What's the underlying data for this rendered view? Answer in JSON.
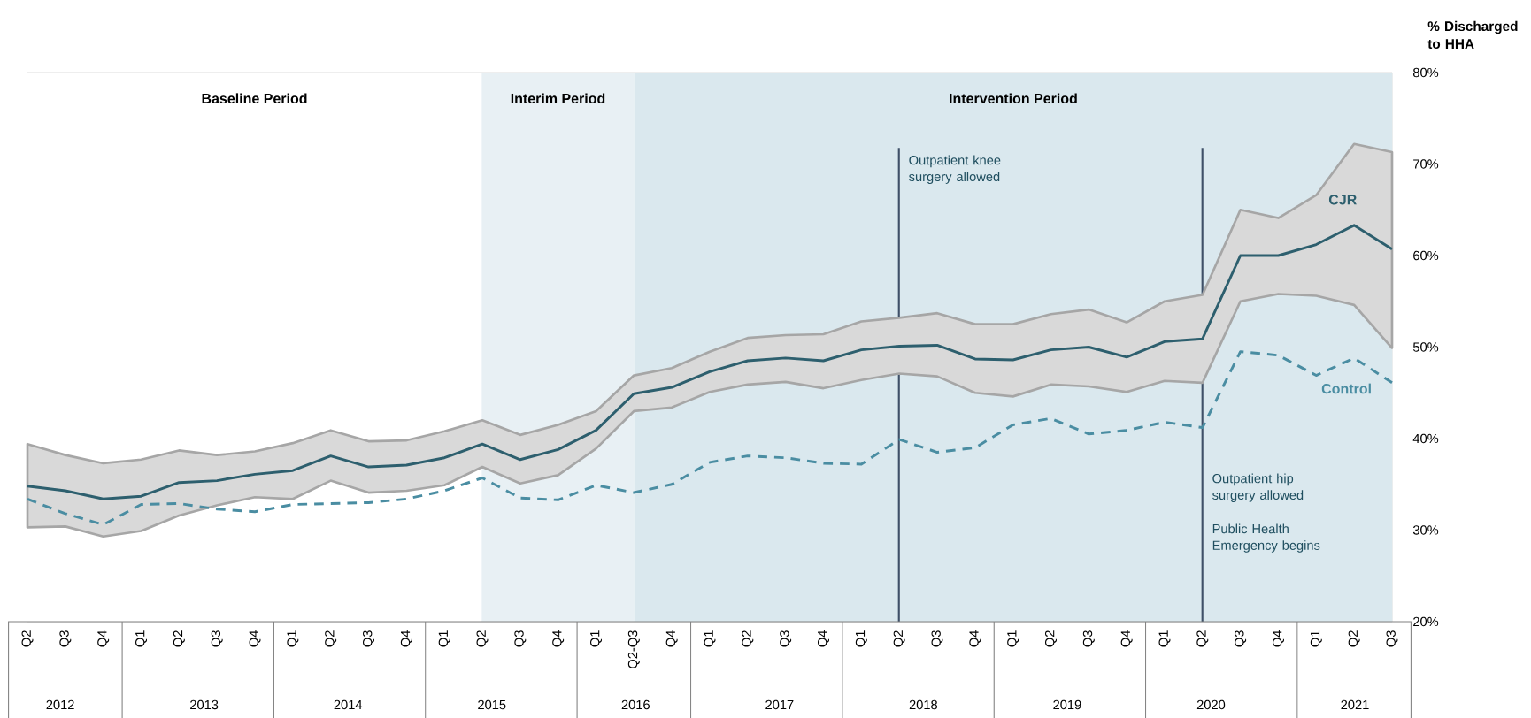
{
  "chart_data": {
    "type": "line",
    "ylabel": "% Discharged to HHA",
    "categories": [
      "Q2",
      "Q3",
      "Q4",
      "Q1",
      "Q2",
      "Q3",
      "Q4",
      "Q1",
      "Q2",
      "Q3",
      "Q4",
      "Q1",
      "Q2",
      "Q3",
      "Q4",
      "Q1",
      "Q2-Q3",
      "Q4",
      "Q1",
      "Q2",
      "Q3",
      "Q4",
      "Q1",
      "Q2",
      "Q3",
      "Q4",
      "Q1",
      "Q2",
      "Q3",
      "Q4",
      "Q1",
      "Q2",
      "Q3",
      "Q4",
      "Q1",
      "Q2",
      "Q3"
    ],
    "x2lim": [
      2011.64,
      2021.39
    ],
    "x2ticks": [
      2012,
      2013,
      2014,
      2015,
      2016,
      2017,
      2018,
      2019,
      2020,
      2021
    ],
    "ylim": [
      20,
      80
    ],
    "yticks": [
      {
        "value": 20,
        "label": "20%"
      },
      {
        "value": 30,
        "label": "30%"
      },
      {
        "value": 40,
        "label": "40%"
      },
      {
        "value": 50,
        "label": "50%"
      },
      {
        "value": 60,
        "label": "60%"
      },
      {
        "value": 70,
        "label": "70%"
      },
      {
        "value": 80,
        "label": "80%"
      }
    ],
    "series": [
      {
        "name": "CJR",
        "color": "#2d5f6e",
        "line_style": "solid",
        "values": [
          34.8,
          34.3,
          33.4,
          33.7,
          35.2,
          35.4,
          36.1,
          36.5,
          38.1,
          36.9,
          37.1,
          37.9,
          39.4,
          37.7,
          38.8,
          40.9,
          44.9,
          45.6,
          47.3,
          48.5,
          48.8,
          48.5,
          49.7,
          50.1,
          50.2,
          48.7,
          48.6,
          49.7,
          50.0,
          48.9,
          50.6,
          50.9,
          60.0,
          60.0,
          61.2,
          63.3,
          60.7
        ],
        "lower": [
          30.3,
          30.4,
          29.3,
          29.9,
          31.6,
          32.7,
          33.6,
          33.4,
          35.4,
          34.1,
          34.3,
          34.9,
          36.9,
          35.1,
          36.0,
          38.9,
          43.0,
          43.4,
          45.1,
          45.9,
          46.2,
          45.5,
          46.4,
          47.1,
          46.8,
          45.0,
          44.6,
          45.9,
          45.7,
          45.1,
          46.3,
          46.1,
          55.0,
          55.8,
          55.6,
          54.6,
          49.9
        ],
        "upper": [
          39.4,
          38.2,
          37.3,
          37.7,
          38.7,
          38.2,
          38.6,
          39.5,
          40.9,
          39.7,
          39.8,
          40.8,
          42.0,
          40.4,
          41.5,
          43.0,
          46.9,
          47.7,
          49.5,
          51.0,
          51.3,
          51.4,
          52.8,
          53.2,
          53.7,
          52.5,
          52.5,
          53.6,
          54.1,
          52.7,
          55.0,
          55.7,
          65.0,
          64.1,
          66.6,
          72.2,
          71.3
        ]
      },
      {
        "name": "Control",
        "color": "#4a8da2",
        "line_style": "dashed",
        "values": [
          33.4,
          31.8,
          30.6,
          32.8,
          32.9,
          32.3,
          32.0,
          32.8,
          32.9,
          33.0,
          33.4,
          34.3,
          35.7,
          33.5,
          33.3,
          34.9,
          34.1,
          35.0,
          37.4,
          38.1,
          37.9,
          37.3,
          37.2,
          39.9,
          38.5,
          39.0,
          41.5,
          42.2,
          40.5,
          40.9,
          41.8,
          41.2,
          49.5,
          49.1,
          46.9,
          48.8,
          46.1
        ]
      }
    ],
    "bands": [
      {
        "axis": "x2",
        "from": 2011.77,
        "to": 2014.93,
        "label": "Baseline Period",
        "color": "#ffffff"
      },
      {
        "axis": "x2",
        "from": 2014.93,
        "to": 2015.99,
        "label": "Interim Period",
        "color": "#e8f0f4"
      },
      {
        "axis": "x2",
        "from": 2015.99,
        "to": 2021.26,
        "label": "Intervention Period",
        "color": "#dae8ee"
      }
    ],
    "ref_lines": [
      {
        "axis": "x2",
        "value": 2017.83,
        "label": "Outpatient knee surgery allowed",
        "color": "#3f5068"
      },
      {
        "axis": "x2",
        "value": 2019.94,
        "label": "Outpatient hip surgery allowed",
        "color": "#3f5068"
      }
    ],
    "annotations": [
      "Public Health Emergency begins"
    ]
  }
}
